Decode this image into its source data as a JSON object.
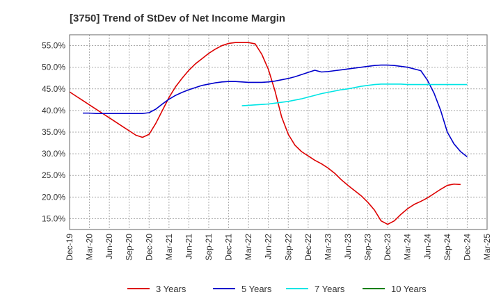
{
  "chart_data": {
    "type": "line",
    "title": "[3750]  Trend of StDev of Net Income Margin",
    "xlabel": "",
    "ylabel": "",
    "x_ticks": [
      "Dec-19",
      "Mar-20",
      "Jun-20",
      "Sep-20",
      "Dec-20",
      "Mar-21",
      "Jun-21",
      "Sep-21",
      "Dec-21",
      "Mar-22",
      "Jun-22",
      "Sep-22",
      "Dec-22",
      "Mar-23",
      "Jun-23",
      "Sep-23",
      "Dec-23",
      "Mar-24",
      "Jun-24",
      "Sep-24",
      "Dec-24",
      "Mar-25"
    ],
    "y_ticks": [
      "15.0%",
      "20.0%",
      "25.0%",
      "30.0%",
      "35.0%",
      "40.0%",
      "45.0%",
      "50.0%",
      "55.0%"
    ],
    "y_tick_values": [
      15,
      20,
      25,
      30,
      35,
      40,
      45,
      50,
      55
    ],
    "ylim": [
      12.5,
      57.5
    ],
    "grid": true,
    "legend_position": "bottom",
    "series": [
      {
        "name": "3 Years",
        "color": "#dd0000",
        "points": [
          [
            0,
            44.3
          ],
          [
            1,
            43.3
          ],
          [
            2,
            42.3
          ],
          [
            3,
            41.3
          ],
          [
            4,
            40.3
          ],
          [
            5,
            39.3
          ],
          [
            6,
            38.3
          ],
          [
            7,
            37.3
          ],
          [
            8,
            36.3
          ],
          [
            9,
            35.3
          ],
          [
            10,
            34.3
          ],
          [
            11,
            33.8
          ],
          [
            12,
            34.5
          ],
          [
            13,
            37.0
          ],
          [
            14,
            40.0
          ],
          [
            15,
            43.0
          ],
          [
            16,
            45.5
          ],
          [
            17,
            47.5
          ],
          [
            18,
            49.3
          ],
          [
            19,
            50.8
          ],
          [
            20,
            52.0
          ],
          [
            21,
            53.2
          ],
          [
            22,
            54.2
          ],
          [
            23,
            55.0
          ],
          [
            24,
            55.5
          ],
          [
            25,
            55.7
          ],
          [
            26,
            55.7
          ],
          [
            27,
            55.7
          ],
          [
            28,
            55.4
          ],
          [
            29,
            53.0
          ],
          [
            30,
            49.5
          ],
          [
            31,
            44.5
          ],
          [
            32,
            38.5
          ],
          [
            33,
            34.5
          ],
          [
            34,
            32.0
          ],
          [
            35,
            30.5
          ],
          [
            36,
            29.5
          ],
          [
            37,
            28.5
          ],
          [
            38,
            27.7
          ],
          [
            39,
            26.7
          ],
          [
            40,
            25.5
          ],
          [
            41,
            24.0
          ],
          [
            42,
            22.7
          ],
          [
            43,
            21.5
          ],
          [
            44,
            20.3
          ],
          [
            45,
            18.8
          ],
          [
            46,
            17.0
          ],
          [
            47,
            14.5
          ],
          [
            48,
            13.7
          ],
          [
            49,
            14.5
          ],
          [
            50,
            16.0
          ],
          [
            51,
            17.3
          ],
          [
            52,
            18.3
          ],
          [
            53,
            19.0
          ],
          [
            54,
            19.8
          ],
          [
            55,
            20.8
          ],
          [
            56,
            21.8
          ],
          [
            57,
            22.7
          ],
          [
            58,
            23.0
          ],
          [
            59,
            22.9
          ]
        ]
      },
      {
        "name": "5 Years",
        "color": "#0000cc",
        "points": [
          [
            2,
            39.4
          ],
          [
            3,
            39.4
          ],
          [
            4,
            39.3
          ],
          [
            5,
            39.3
          ],
          [
            6,
            39.3
          ],
          [
            7,
            39.3
          ],
          [
            8,
            39.3
          ],
          [
            9,
            39.3
          ],
          [
            10,
            39.3
          ],
          [
            11,
            39.3
          ],
          [
            12,
            39.5
          ],
          [
            13,
            40.3
          ],
          [
            14,
            41.5
          ],
          [
            15,
            42.6
          ],
          [
            16,
            43.5
          ],
          [
            17,
            44.2
          ],
          [
            18,
            44.8
          ],
          [
            19,
            45.3
          ],
          [
            20,
            45.8
          ],
          [
            21,
            46.1
          ],
          [
            22,
            46.4
          ],
          [
            23,
            46.6
          ],
          [
            24,
            46.7
          ],
          [
            25,
            46.7
          ],
          [
            26,
            46.6
          ],
          [
            27,
            46.5
          ],
          [
            28,
            46.5
          ],
          [
            29,
            46.5
          ],
          [
            30,
            46.6
          ],
          [
            31,
            46.8
          ],
          [
            32,
            47.1
          ],
          [
            33,
            47.4
          ],
          [
            34,
            47.8
          ],
          [
            35,
            48.3
          ],
          [
            36,
            48.8
          ],
          [
            37,
            49.3
          ],
          [
            38,
            48.9
          ],
          [
            39,
            49.0
          ],
          [
            40,
            49.2
          ],
          [
            41,
            49.4
          ],
          [
            42,
            49.6
          ],
          [
            43,
            49.8
          ],
          [
            44,
            50.0
          ],
          [
            45,
            50.2
          ],
          [
            46,
            50.4
          ],
          [
            47,
            50.5
          ],
          [
            48,
            50.5
          ],
          [
            49,
            50.4
          ],
          [
            50,
            50.2
          ],
          [
            51,
            50.0
          ],
          [
            52,
            49.6
          ],
          [
            53,
            49.2
          ],
          [
            54,
            47.0
          ],
          [
            55,
            44.0
          ],
          [
            56,
            40.0
          ],
          [
            57,
            35.0
          ],
          [
            58,
            32.3
          ],
          [
            59,
            30.5
          ],
          [
            60,
            29.3
          ]
        ]
      },
      {
        "name": "7 Years",
        "color": "#00e5e5",
        "points": [
          [
            26,
            41.1
          ],
          [
            27,
            41.2
          ],
          [
            28,
            41.3
          ],
          [
            29,
            41.4
          ],
          [
            30,
            41.5
          ],
          [
            31,
            41.7
          ],
          [
            32,
            41.9
          ],
          [
            33,
            42.1
          ],
          [
            34,
            42.4
          ],
          [
            35,
            42.7
          ],
          [
            36,
            43.1
          ],
          [
            37,
            43.5
          ],
          [
            38,
            43.9
          ],
          [
            39,
            44.2
          ],
          [
            40,
            44.5
          ],
          [
            41,
            44.8
          ],
          [
            42,
            45.0
          ],
          [
            43,
            45.3
          ],
          [
            44,
            45.6
          ],
          [
            45,
            45.8
          ],
          [
            46,
            46.0
          ],
          [
            47,
            46.1
          ],
          [
            48,
            46.1
          ],
          [
            49,
            46.1
          ],
          [
            50,
            46.1
          ],
          [
            51,
            46.0
          ],
          [
            52,
            46.0
          ],
          [
            53,
            46.0
          ],
          [
            54,
            46.0
          ],
          [
            55,
            46.0
          ],
          [
            56,
            46.0
          ],
          [
            57,
            46.0
          ],
          [
            58,
            46.0
          ],
          [
            59,
            46.0
          ],
          [
            60,
            46.0
          ]
        ]
      },
      {
        "name": "10 Years",
        "color": "#008000",
        "points": []
      }
    ]
  }
}
